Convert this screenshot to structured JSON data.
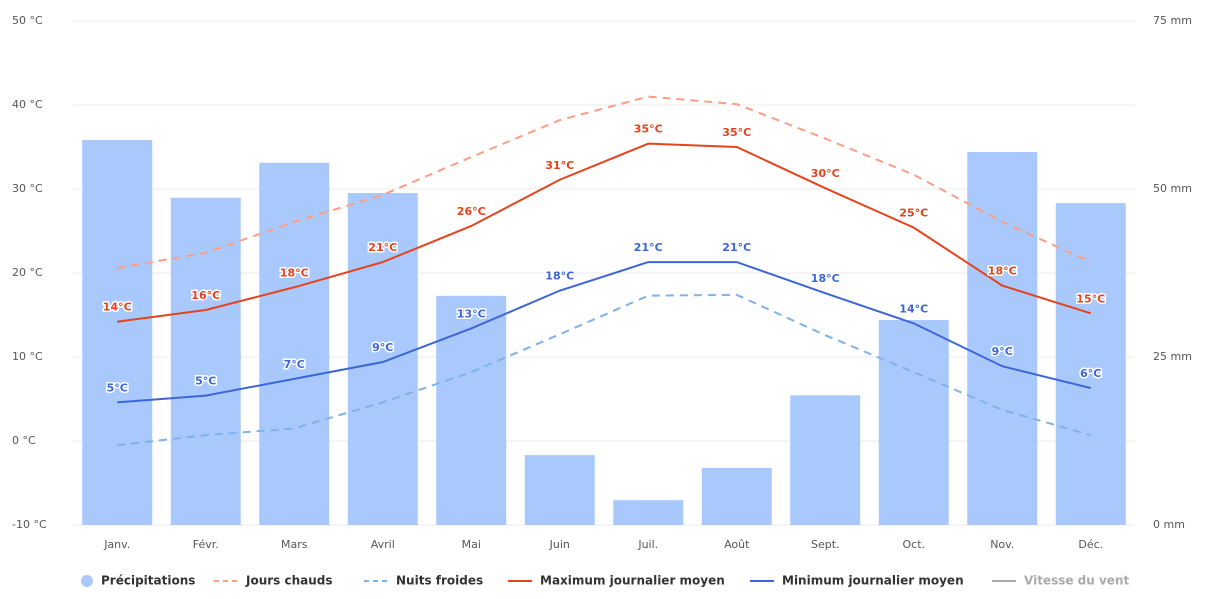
{
  "chart_data": {
    "type": "combo",
    "categories": [
      "Janv.",
      "Févr.",
      "Mars",
      "Avril",
      "Mai",
      "Juin",
      "Juil.",
      "Août",
      "Sept.",
      "Oct.",
      "Nov.",
      "Déc."
    ],
    "ylim": [
      -10,
      50
    ],
    "yticks": [
      {
        "value": -10,
        "label": "-10 °C"
      },
      {
        "value": 0,
        "label": "0 °C"
      },
      {
        "value": 10,
        "label": "10 °C"
      },
      {
        "value": 20,
        "label": "20 °C"
      },
      {
        "value": 30,
        "label": "30 °C"
      },
      {
        "value": 40,
        "label": "40 °C"
      },
      {
        "value": 50,
        "label": "50 °C"
      }
    ],
    "y2lim": [
      0,
      75
    ],
    "y2ticks": [
      {
        "value": 0,
        "label": "0 mm"
      },
      {
        "value": 25,
        "label": "25 mm"
      },
      {
        "value": 50,
        "label": "50 mm"
      },
      {
        "value": 75,
        "label": "75 mm"
      }
    ],
    "grid": true,
    "series": [
      {
        "name": "Précipitations",
        "type": "bar",
        "axis": "y2",
        "color": "#a9c9fd",
        "values": [
          57.3,
          48.7,
          53.9,
          49.4,
          34.1,
          10.4,
          3.7,
          8.5,
          19.3,
          30.5,
          55.5,
          47.9
        ]
      },
      {
        "name": "Jours chauds",
        "type": "line",
        "dashed": true,
        "color": "#fb9e87",
        "values": [
          20.6,
          22.4,
          26.1,
          29.3,
          33.8,
          38.2,
          41,
          40.1,
          36,
          31.7,
          26.1,
          21.3
        ]
      },
      {
        "name": "Nuits froides",
        "type": "line",
        "dashed": true,
        "color": "#7fb1ea",
        "values": [
          -0.5,
          0.7,
          1.5,
          4.6,
          8.2,
          12.7,
          17.3,
          17.4,
          12.6,
          8.2,
          3.7,
          0.7
        ]
      },
      {
        "name": "Maximum journalier moyen",
        "type": "line",
        "color": "#e4431d",
        "values": [
          14.2,
          15.6,
          18.3,
          21.3,
          25.6,
          31.1,
          35.4,
          35,
          30.1,
          25.4,
          18.5,
          15.2
        ],
        "value_labels": [
          "14°C",
          "16°C",
          "18°C",
          "21°C",
          "26°C",
          "31°C",
          "35°C",
          "35°C",
          "30°C",
          "25°C",
          "18°C",
          "15°C"
        ]
      },
      {
        "name": "Minimum journalier moyen",
        "type": "line",
        "color": "#3c66d6",
        "values": [
          4.6,
          5.4,
          7.4,
          9.4,
          13.4,
          17.9,
          21.3,
          21.3,
          17.6,
          14.0,
          8.9,
          6.3
        ],
        "value_labels": [
          "5°C",
          "5°C",
          "7°C",
          "9°C",
          "13°C",
          "18°C",
          "21°C",
          "21°C",
          "18°C",
          "14°C",
          "9°C",
          "6°C"
        ]
      },
      {
        "name": "Vitesse du vent",
        "type": "line",
        "visible": false,
        "color": "#aaaaaa",
        "values": [
          null,
          null,
          null,
          null,
          null,
          null,
          null,
          null,
          null,
          null,
          null,
          null
        ]
      }
    ]
  }
}
